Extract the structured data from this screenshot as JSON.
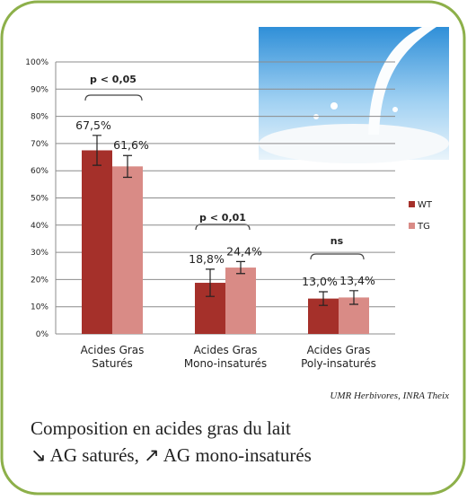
{
  "chart_data": {
    "type": "bar",
    "categories": [
      [
        "Acides Gras",
        "Saturés"
      ],
      [
        "Acides Gras",
        "Mono-insaturés"
      ],
      [
        "Acides Gras",
        "Poly-insaturés"
      ]
    ],
    "series": [
      {
        "name": "WT",
        "color": "#a5302a",
        "values": [
          67.5,
          18.8,
          13.0
        ],
        "value_labels": [
          "67,5%",
          "18,8%",
          "13,0%"
        ],
        "errors": [
          5.5,
          5,
          2.5
        ]
      },
      {
        "name": "TG",
        "color": "#d98b86",
        "values": [
          61.6,
          24.4,
          13.4
        ],
        "value_labels": [
          "61,6%",
          "24,4%",
          "13,4%"
        ],
        "errors": [
          4,
          2.2,
          2.5
        ]
      }
    ],
    "ylim": [
      0,
      100
    ],
    "yticks": [
      {
        "value": 0,
        "label": "0%"
      },
      {
        "value": 10,
        "label": "10%"
      },
      {
        "value": 20,
        "label": "20%"
      },
      {
        "value": 30,
        "label": "30%"
      },
      {
        "value": 40,
        "label": "40%"
      },
      {
        "value": 50,
        "label": "50%"
      },
      {
        "value": 60,
        "label": "60%"
      },
      {
        "value": 70,
        "label": "70%"
      },
      {
        "value": 80,
        "label": "80%"
      },
      {
        "value": 90,
        "label": "90%"
      },
      {
        "value": 100,
        "label": "100%"
      }
    ],
    "grid": true,
    "legend": "right",
    "annotations": [
      "p < 0,05",
      "p < 0,01",
      "ns"
    ],
    "source": "UMR Herbivores, INRA Theix",
    "caption": [
      "Composition en acides gras du lait",
      "↘ AG saturés, ↗ AG mono-insaturés"
    ]
  }
}
